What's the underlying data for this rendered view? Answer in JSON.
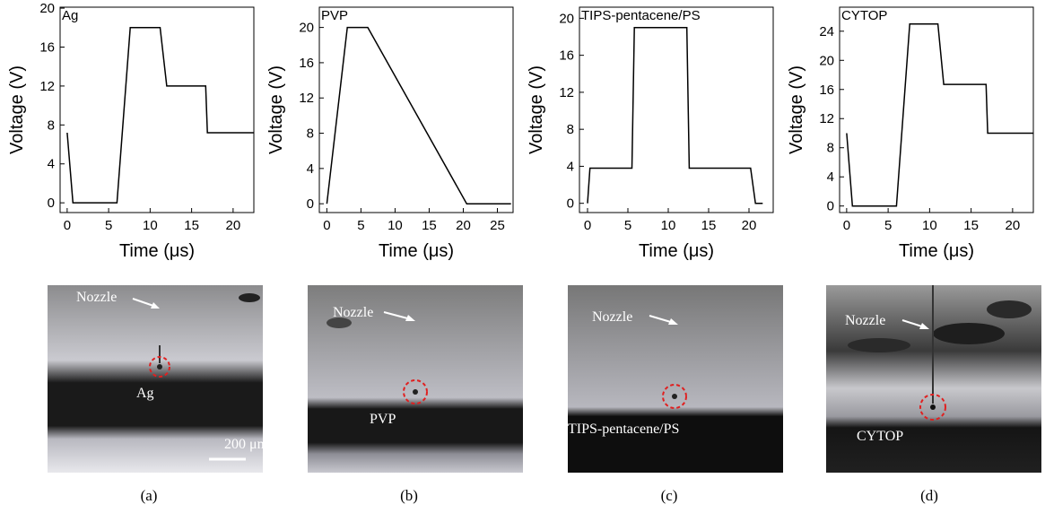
{
  "chart_data": [
    {
      "type": "line",
      "title": "Ag",
      "xlabel": "Time (μs)",
      "ylabel": "Voltage (V)",
      "x": [
        0,
        0.7,
        6,
        7.6,
        11.2,
        12,
        16.7,
        16.9,
        22.5
      ],
      "values": [
        7.2,
        0,
        0,
        18,
        18,
        12,
        12,
        7.2,
        7.2
      ],
      "color": "#000000",
      "xlim": [
        -0.85,
        22.5
      ],
      "xticks": [
        0,
        5,
        10,
        15,
        20
      ],
      "ylim": [
        -1,
        20.1
      ],
      "yticks": [
        0,
        4,
        8,
        12,
        16,
        20
      ]
    },
    {
      "type": "line",
      "title": "PVP",
      "xlabel": "Time (μs)",
      "ylabel": "Voltage (V)",
      "x": [
        0,
        3,
        6,
        20.5,
        27
      ],
      "values": [
        0,
        20,
        20,
        0,
        0
      ],
      "color": "#000000",
      "xlim": [
        -1.1,
        27.3
      ],
      "xticks": [
        0,
        5,
        10,
        15,
        20,
        25
      ],
      "ylim": [
        -1,
        22.3
      ],
      "yticks": [
        0,
        4,
        8,
        12,
        16,
        20
      ]
    },
    {
      "type": "line",
      "title": "TIPS-pentacene/PS",
      "xlabel": "Time (μs)",
      "ylabel": "Voltage (V)",
      "x": [
        0,
        0.3,
        5.5,
        5.8,
        12.3,
        12.6,
        20.2,
        20.8,
        21.7
      ],
      "values": [
        0,
        3.8,
        3.8,
        19,
        19,
        3.8,
        3.8,
        0,
        0
      ],
      "color": "#000000",
      "xlim": [
        -1,
        23
      ],
      "xticks": [
        0,
        5,
        10,
        15,
        20
      ],
      "ylim": [
        -1,
        21.2
      ],
      "yticks": [
        0,
        4,
        8,
        12,
        16,
        20
      ]
    },
    {
      "type": "line",
      "title": "CYTOP",
      "xlabel": "Time (μs)",
      "ylabel": "Voltage (V)",
      "x": [
        0,
        0.7,
        6,
        7.6,
        11,
        11.7,
        16.8,
        17,
        22.5
      ],
      "values": [
        10,
        0,
        0,
        25,
        25,
        16.7,
        16.7,
        10,
        10
      ],
      "color": "#000000",
      "xlim": [
        -0.85,
        22.5
      ],
      "xticks": [
        0,
        5,
        10,
        15,
        20
      ],
      "ylim": [
        -0.9,
        27.3
      ],
      "yticks": [
        0,
        4,
        8,
        12,
        16,
        20,
        24
      ]
    }
  ],
  "photos": [
    {
      "nozzle": "Nozzle",
      "sample": "Ag",
      "scale_bar": "200 μm"
    },
    {
      "nozzle": "Nozzle",
      "sample": "PVP"
    },
    {
      "nozzle": "Nozzle",
      "sample": "TIPS-pentacene/PS"
    },
    {
      "nozzle": "Nozzle",
      "sample": "CYTOP"
    }
  ],
  "panel_labels": [
    "(a)",
    "(b)",
    "(c)",
    "(d)"
  ]
}
